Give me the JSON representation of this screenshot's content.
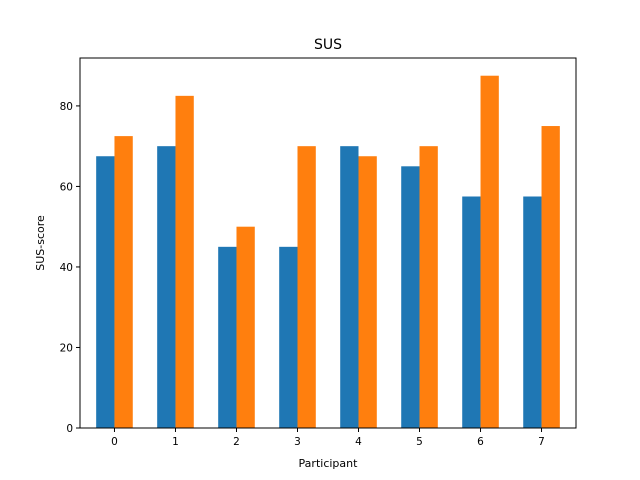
{
  "chart_data": {
    "type": "bar",
    "title": "SUS",
    "xlabel": "Participant",
    "ylabel": "SUS-score",
    "categories": [
      "0",
      "1",
      "2",
      "3",
      "4",
      "5",
      "6",
      "7"
    ],
    "series": [
      {
        "values": [
          67.5,
          70,
          45,
          45,
          70,
          65,
          57.5,
          57.5
        ],
        "color": "#1f77b4"
      },
      {
        "values": [
          72.5,
          82.5,
          50,
          70,
          67.5,
          70,
          87.5,
          75
        ],
        "color": "#ff7f0e"
      }
    ],
    "ylim": [
      0,
      91.9
    ],
    "yticks": [
      0,
      20,
      40,
      60,
      80
    ],
    "grid": false
  }
}
